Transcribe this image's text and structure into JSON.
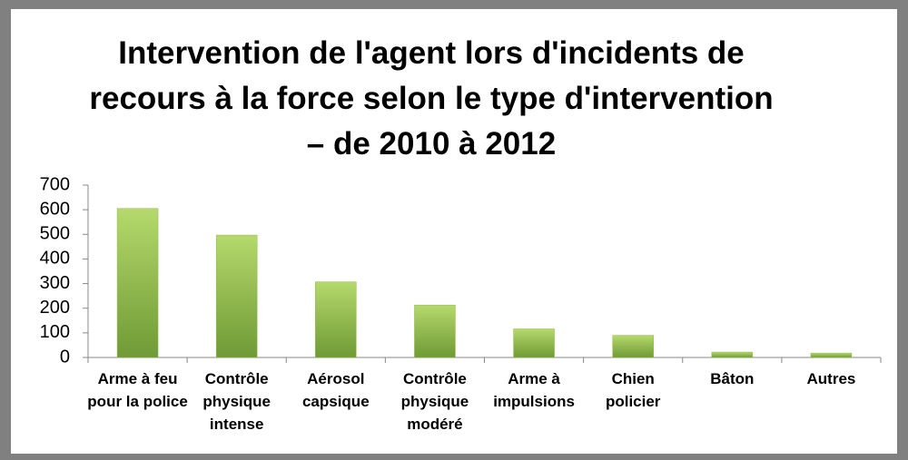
{
  "chart_data": {
    "type": "bar",
    "title": "Intervention de l'agent lors d'incidents de recours à la force selon le type d'intervention – de 2010 à 2012",
    "categories": [
      "Arme à feu pour la police",
      "Contrôle physique intense",
      "Aérosol capsique",
      "Contrôle physique modéré",
      "Arme à impulsions",
      "Chien policier",
      "Bâton",
      "Autres"
    ],
    "values": [
      605,
      497,
      307,
      213,
      116,
      90,
      22,
      18
    ],
    "color": "#8fbc45",
    "ylim": [
      0,
      700
    ],
    "yticks": [
      0,
      100,
      200,
      300,
      400,
      500,
      600,
      700
    ],
    "grid": false
  }
}
